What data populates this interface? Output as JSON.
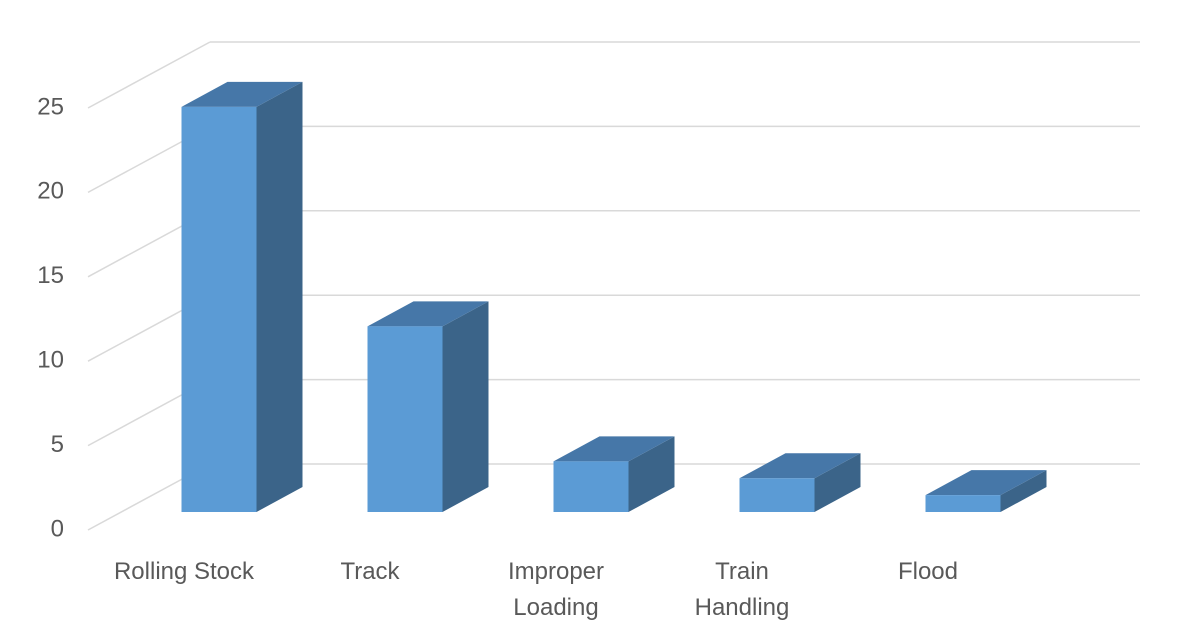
{
  "chart_data": {
    "type": "bar",
    "categories": [
      "Rolling Stock",
      "Track",
      "Improper Loading",
      "Train Handling",
      "Flood"
    ],
    "values": [
      24,
      11,
      3,
      2,
      1
    ],
    "color": "#5b9bd5",
    "ylim": [
      0,
      25
    ],
    "yticks": [
      0,
      5,
      10,
      15,
      20,
      25
    ],
    "grid": true
  }
}
